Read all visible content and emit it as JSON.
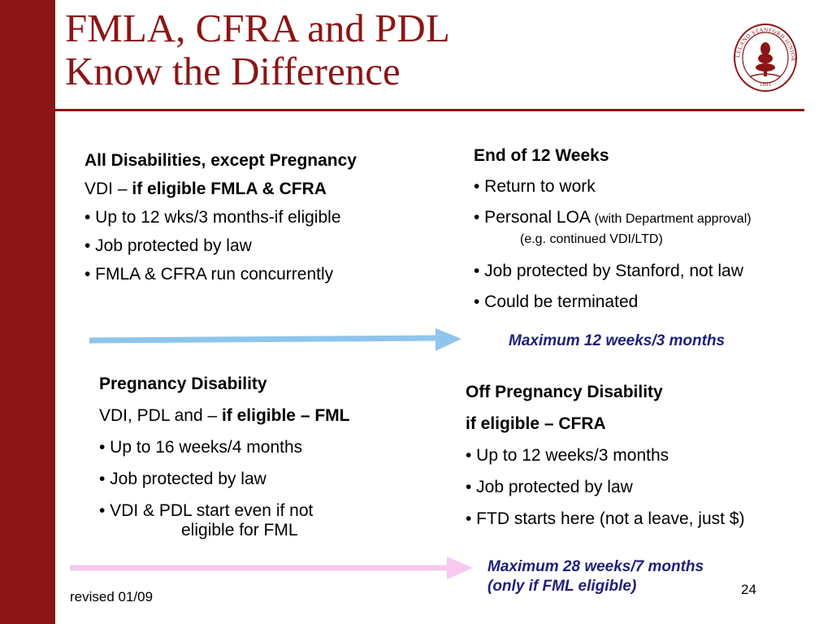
{
  "title": {
    "line1": "FMLA, CFRA and PDL",
    "line2": "Know the Difference"
  },
  "top_left": {
    "heading": "All Disabilities, except Pregnancy",
    "vdi_prefix": "VDI – ",
    "vdi_bold": "if eligible FMLA & CFRA",
    "items": [
      "• Up to 12 wks/3 months-if eligible",
      "• Job protected by law",
      "• FMLA & CFRA run concurrently"
    ]
  },
  "top_right": {
    "heading": "End of 12 Weeks",
    "item1": "• Return to work",
    "item2_main": "• Personal LOA ",
    "item2_small": "(with Department approval)",
    "item2_cont": "(e.g. continued VDI/LTD)",
    "item3": "• Job protected by Stanford, not law",
    "item4": "• Could be terminated"
  },
  "arrow1_note": "Maximum 12 weeks/3 months",
  "bottom_left": {
    "heading": "Pregnancy Disability",
    "vdi_prefix": "VDI, PDL and – ",
    "vdi_bold": "if eligible – FML",
    "item1": "• Up to 16 weeks/4 months",
    "item2": "• Job protected by law",
    "item3": "• VDI & PDL start even if not",
    "item3_cont": "eligible for FML"
  },
  "bottom_right": {
    "heading": "Off Pregnancy Disability",
    "subheading": "if eligible – CFRA",
    "item1": "• Up to 12 weeks/3 months",
    "item2": "• Job protected by law",
    "item3": "• FTD starts here (not a leave, just $)"
  },
  "arrow2_note": {
    "line1": "Maximum 28 weeks/7 months",
    "line2": "(only if FML eligible)"
  },
  "footer": {
    "revised": "revised 01/09",
    "page": "24"
  },
  "seal": {
    "text": "LELAND STANFORD JUNIOR UNIVERSITY",
    "year": "1891"
  },
  "colors": {
    "brand": "#8c1515",
    "arrow_blue": "#8ec5ec",
    "arrow_pink": "#f7c8f0",
    "note": "#1f1f7a"
  },
  "icons": [
    "stanford-seal-icon",
    "arrow-right-icon"
  ]
}
